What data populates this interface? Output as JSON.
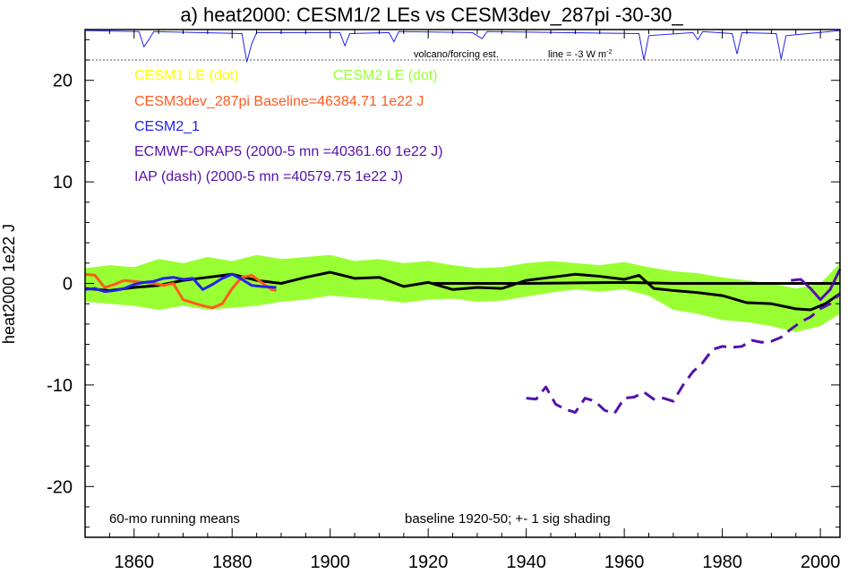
{
  "chart_data": {
    "type": "line",
    "title": "a) heat2000: CESM1/2 LEs vs CESM3dev_287pi -30-30_",
    "ylabel": "heat2000 1e22 J",
    "xlabel": "",
    "xlim": [
      1850,
      2004
    ],
    "ylim": [
      -25,
      25
    ],
    "x_ticks": [
      1860,
      1880,
      1900,
      1920,
      1940,
      1960,
      1980,
      2000
    ],
    "y_ticks": [
      20,
      10,
      0,
      -10,
      -20
    ],
    "grid": false,
    "legend": [
      {
        "text": "CESM1 LE (dot)",
        "color": "#ffff00"
      },
      {
        "text": "CESM2 LE (dot)",
        "color": "#99ff33"
      },
      {
        "text": "CESM3dev_287pi Baseline=46384.71 1e22 J",
        "color": "#ff5a1f"
      },
      {
        "text": "CESM2_1",
        "color": "#2222ee"
      },
      {
        "text": "ECMWF-ORAP5 (2000-5 mn =40361.60 1e22 J)",
        "color": "#5511aa"
      },
      {
        "text": "IAP (dash) (2000-5 mn =40579.75 1e22 J)",
        "color": "#5511aa"
      }
    ],
    "annotations": {
      "volcano": "volcano/forcing est.",
      "line_scale": "line = -3 W m",
      "line_scale_sup": "-2",
      "running_means": "60-mo running means",
      "baseline": "baseline 1920-50; +- 1 sig shading"
    },
    "shading": {
      "name": "+- 1 sig",
      "color": "#99ff33",
      "x": [
        1850,
        1855,
        1860,
        1865,
        1870,
        1875,
        1880,
        1885,
        1890,
        1895,
        1900,
        1905,
        1910,
        1915,
        1920,
        1925,
        1930,
        1935,
        1940,
        1945,
        1950,
        1955,
        1960,
        1965,
        1970,
        1975,
        1980,
        1985,
        1990,
        1995,
        2000,
        2004
      ],
      "upper": [
        1.5,
        1.8,
        1.6,
        2.4,
        2.0,
        2.6,
        2.2,
        2.8,
        2.4,
        2.6,
        2.8,
        2.2,
        2.4,
        2.0,
        2.2,
        1.8,
        1.5,
        1.6,
        2.0,
        2.2,
        2.0,
        1.8,
        2.1,
        1.6,
        1.2,
        1.0,
        0.6,
        0.3,
        0.0,
        -0.5,
        0.0,
        2.0
      ],
      "lower": [
        -1.8,
        -2.0,
        -2.2,
        -2.6,
        -2.2,
        -2.6,
        -2.4,
        -2.2,
        -1.8,
        -1.6,
        -1.2,
        -1.4,
        -1.6,
        -1.9,
        -1.6,
        -1.5,
        -1.8,
        -1.7,
        -1.3,
        -0.9,
        -0.6,
        -0.8,
        -0.6,
        -1.2,
        -2.6,
        -3.0,
        -3.6,
        -3.8,
        -4.2,
        -4.8,
        -4.2,
        -3.0
      ]
    },
    "series": [
      {
        "name": "CESM3dev_287pi",
        "color": "#000000",
        "style": "solid",
        "x": [
          1850,
          1855,
          1860,
          1865,
          1870,
          1875,
          1880,
          1885,
          1890,
          1895,
          1900,
          1905,
          1910,
          1915,
          1920,
          1925,
          1930,
          1935,
          1940,
          1945,
          1950,
          1955,
          1960,
          1963,
          1966,
          1970,
          1975,
          1980,
          1985,
          1990,
          1995,
          1998,
          2001,
          2004
        ],
        "y": [
          -0.5,
          -0.7,
          -0.4,
          -0.2,
          0.3,
          0.6,
          0.9,
          0.3,
          0.0,
          0.6,
          1.1,
          0.5,
          0.6,
          -0.3,
          0.1,
          -0.6,
          -0.4,
          -0.5,
          0.3,
          0.6,
          0.9,
          0.7,
          0.4,
          0.8,
          -0.5,
          -0.7,
          -0.9,
          -1.2,
          -1.9,
          -2.0,
          -2.5,
          -2.6,
          -2.0,
          -1.0
        ]
      },
      {
        "name": "baseline mean",
        "color": "#000000",
        "style": "solid",
        "x": [
          1921,
          1930,
          1940,
          1950,
          1960,
          1970,
          1980,
          1990,
          2000,
          2004
        ],
        "y": [
          0.0,
          0.0,
          0.0,
          0.05,
          0.1,
          0.0,
          0.0,
          0.0,
          0.0,
          0.0
        ]
      },
      {
        "name": "CESM3dev_287pi (orange)",
        "color": "#ff5a1f",
        "style": "solid",
        "x": [
          1850,
          1852,
          1854,
          1856,
          1858,
          1860,
          1862,
          1864,
          1866,
          1868,
          1870,
          1872,
          1874,
          1876,
          1878,
          1880,
          1882,
          1884,
          1886,
          1888,
          1889
        ],
        "y": [
          0.9,
          0.8,
          -0.4,
          -0.1,
          0.3,
          0.2,
          0.1,
          0.0,
          -0.2,
          0.0,
          -1.6,
          -1.9,
          -2.2,
          -2.4,
          -2.0,
          -0.5,
          0.6,
          0.8,
          0.1,
          -0.6,
          -0.7
        ]
      },
      {
        "name": "CESM2_1",
        "color": "#2222ee",
        "style": "solid",
        "x": [
          1850,
          1852,
          1854,
          1856,
          1858,
          1860,
          1862,
          1864,
          1866,
          1868,
          1870,
          1872,
          1874,
          1876,
          1878,
          1880,
          1882,
          1884,
          1886,
          1889
        ],
        "y": [
          -0.6,
          -0.5,
          -0.8,
          -0.7,
          -0.5,
          -0.1,
          0.1,
          0.2,
          0.5,
          0.6,
          0.4,
          0.5,
          -0.6,
          -0.1,
          0.5,
          0.9,
          0.4,
          -0.2,
          -0.3,
          -0.4
        ]
      },
      {
        "name": "ECMWF-ORAP5",
        "color": "#5511aa",
        "style": "solid",
        "x": [
          1994,
          1996,
          1998,
          2000,
          2002,
          2004
        ],
        "y": [
          0.3,
          0.4,
          -0.5,
          -1.6,
          -0.6,
          1.4
        ]
      },
      {
        "name": "IAP",
        "color": "#5511aa",
        "style": "dash",
        "x": [
          1940,
          1942,
          1944,
          1946,
          1948,
          1950,
          1952,
          1954,
          1956,
          1958,
          1960,
          1962,
          1964,
          1966,
          1968,
          1970,
          1972,
          1974,
          1976,
          1978,
          1980,
          1982,
          1984,
          1986,
          1988,
          1990,
          1992,
          1994,
          1996,
          1998,
          2000,
          2002,
          2004
        ],
        "y": [
          -11.3,
          -11.4,
          -10.2,
          -11.9,
          -12.4,
          -12.7,
          -11.3,
          -11.6,
          -12.5,
          -12.8,
          -11.3,
          -11.2,
          -10.7,
          -11.4,
          -11.3,
          -11.6,
          -10.0,
          -8.7,
          -7.8,
          -6.5,
          -6.2,
          -6.3,
          -6.2,
          -5.6,
          -5.8,
          -5.7,
          -5.3,
          -4.5,
          -3.8,
          -3.3,
          -2.5,
          -2.0,
          -1.0
        ]
      }
    ],
    "volcano_line": {
      "color": "#2222ee",
      "x": [
        1850,
        1861,
        1862,
        1863,
        1864,
        1882,
        1883,
        1884,
        1885,
        1902,
        1903,
        1904,
        1912,
        1913,
        1914,
        1929,
        1931,
        1932,
        1963,
        1964,
        1965,
        1974,
        1975,
        1976,
        1982,
        1983,
        1984,
        1991,
        1992,
        1993,
        2004
      ],
      "y": [
        24.9,
        24.8,
        23.3,
        24.0,
        24.8,
        24.6,
        21.8,
        23.6,
        24.7,
        24.7,
        23.4,
        24.6,
        24.7,
        23.8,
        24.8,
        24.7,
        24.1,
        24.8,
        24.6,
        22.0,
        24.4,
        24.7,
        24.0,
        24.8,
        24.6,
        22.6,
        24.7,
        24.6,
        22.1,
        24.4,
        24.9
      ]
    },
    "reference_line_y": 22
  }
}
